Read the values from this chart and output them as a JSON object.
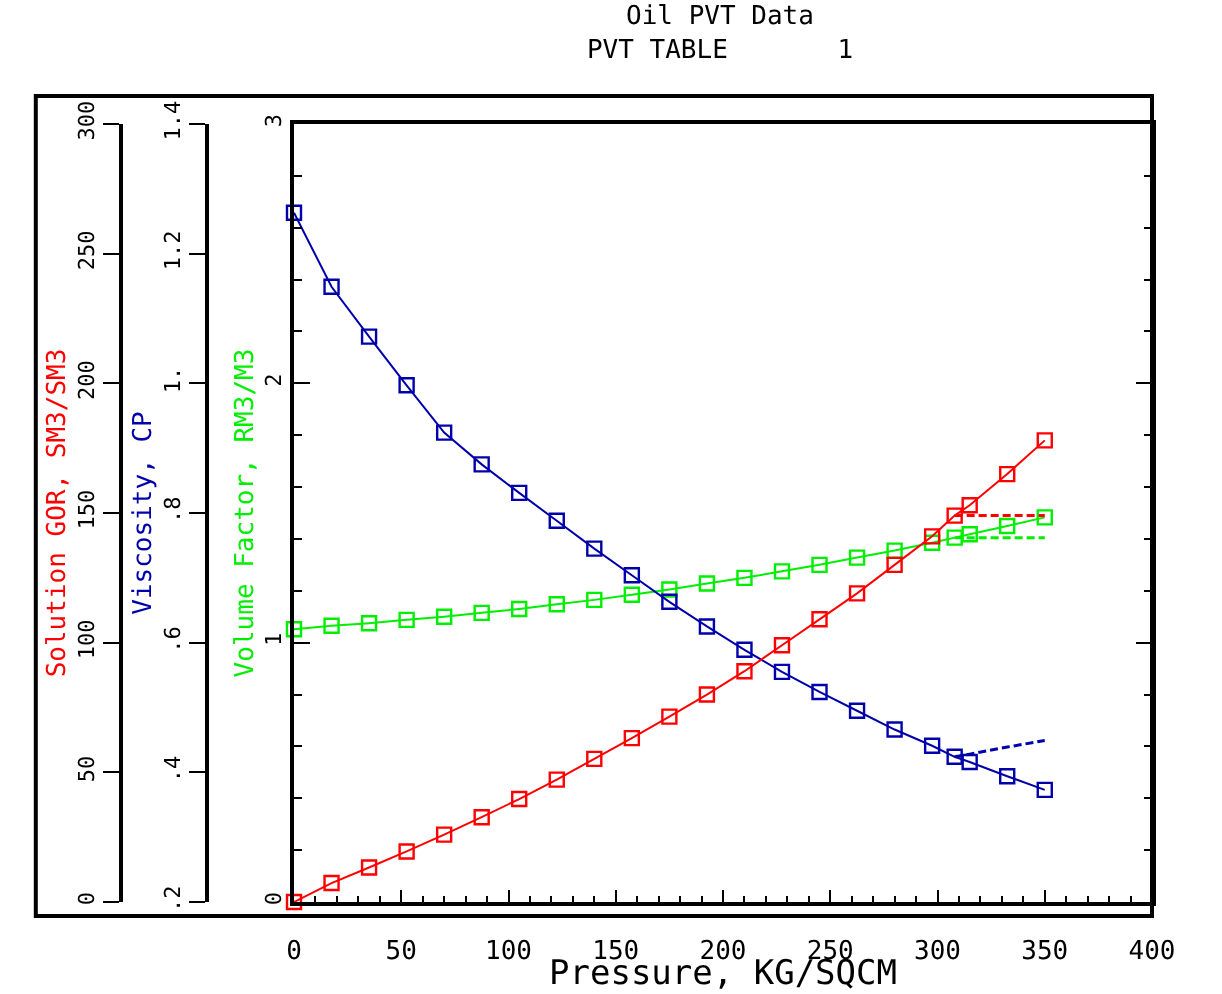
{
  "chart_data": {
    "type": "line",
    "title": "Oil PVT Data",
    "subtitle": "PVT TABLE       1",
    "xlabel": "Pressure, KG/SQCM",
    "ylabel": "Volume Factor, RM3/M3",
    "y2label": "Viscosity, CP",
    "y3label": "Solution GOR, SM3/SM3",
    "xlim": [
      0,
      400
    ],
    "xticks": [
      0,
      50,
      100,
      150,
      200,
      250,
      300,
      350,
      400
    ],
    "ylim": [
      0,
      3
    ],
    "yticks": [
      0,
      1,
      2,
      3
    ],
    "y2lim": [
      0.2,
      1.4
    ],
    "y2ticks": [
      {
        "value": 0.2,
        "label": ".2"
      },
      {
        "value": 0.4,
        "label": ".4"
      },
      {
        "value": 0.6,
        "label": ".6"
      },
      {
        "value": 0.8,
        "label": ".8"
      },
      {
        "value": 1.0,
        "label": "1."
      },
      {
        "value": 1.2,
        "label": "1.2"
      },
      {
        "value": 1.4,
        "label": "1.4"
      }
    ],
    "y3lim": [
      0,
      300
    ],
    "y3ticks": [
      0,
      50,
      100,
      150,
      200,
      250,
      300
    ],
    "grid": false,
    "marker": "square",
    "line_style": "solid",
    "x": [
      0,
      17.5,
      35,
      52.5,
      70,
      87.5,
      105,
      122.5,
      140,
      157.5,
      175,
      192.5,
      210,
      227.5,
      245,
      262.5,
      280,
      297.5,
      308,
      315,
      332.5,
      350
    ],
    "series": [
      {
        "color": "#ff0000",
        "axis": "y3",
        "values": [
          0,
          7.3,
          13.3,
          19.5,
          26,
          32.7,
          39.7,
          47.2,
          55.2,
          63.2,
          71.5,
          80,
          89,
          99,
          109,
          119,
          130,
          141,
          149,
          153,
          165,
          178
        ]
      },
      {
        "color": "#0000aa",
        "axis": "y2",
        "values": [
          1.263,
          1.149,
          1.072,
          0.997,
          0.924,
          0.875,
          0.831,
          0.788,
          0.745,
          0.704,
          0.663,
          0.625,
          0.589,
          0.555,
          0.524,
          0.495,
          0.466,
          0.441,
          0.424,
          0.416,
          0.394,
          0.373
        ]
      },
      {
        "color": "#00ee00",
        "values": [
          1.052,
          1.065,
          1.075,
          1.088,
          1.1,
          1.115,
          1.13,
          1.148,
          1.165,
          1.185,
          1.205,
          1.228,
          1.25,
          1.275,
          1.3,
          1.328,
          1.355,
          1.385,
          1.405,
          1.418,
          1.45,
          1.483
        ]
      },
      {
        "color": "#ff0000",
        "axis": "y3",
        "values": [
          null,
          null,
          null,
          null,
          null,
          null,
          null,
          null,
          null,
          null,
          null,
          null,
          null,
          null,
          null,
          null,
          null,
          null,
          149,
          149,
          149,
          149
        ],
        "marker": "none",
        "line_style": "dashed"
      },
      {
        "color": "#0000aa",
        "axis": "y2",
        "values": [
          null,
          null,
          null,
          null,
          null,
          null,
          null,
          null,
          null,
          null,
          null,
          null,
          null,
          null,
          null,
          null,
          null,
          null,
          0.424,
          0.428,
          0.439,
          0.449
        ],
        "marker": "none",
        "line_style": "dashed"
      },
      {
        "color": "#00ee00",
        "values": [
          null,
          null,
          null,
          null,
          null,
          null,
          null,
          null,
          null,
          null,
          null,
          null,
          null,
          null,
          null,
          null,
          null,
          null,
          1.405,
          1.405,
          1.405,
          1.405
        ],
        "marker": "none",
        "line_style": "dashed"
      }
    ]
  }
}
